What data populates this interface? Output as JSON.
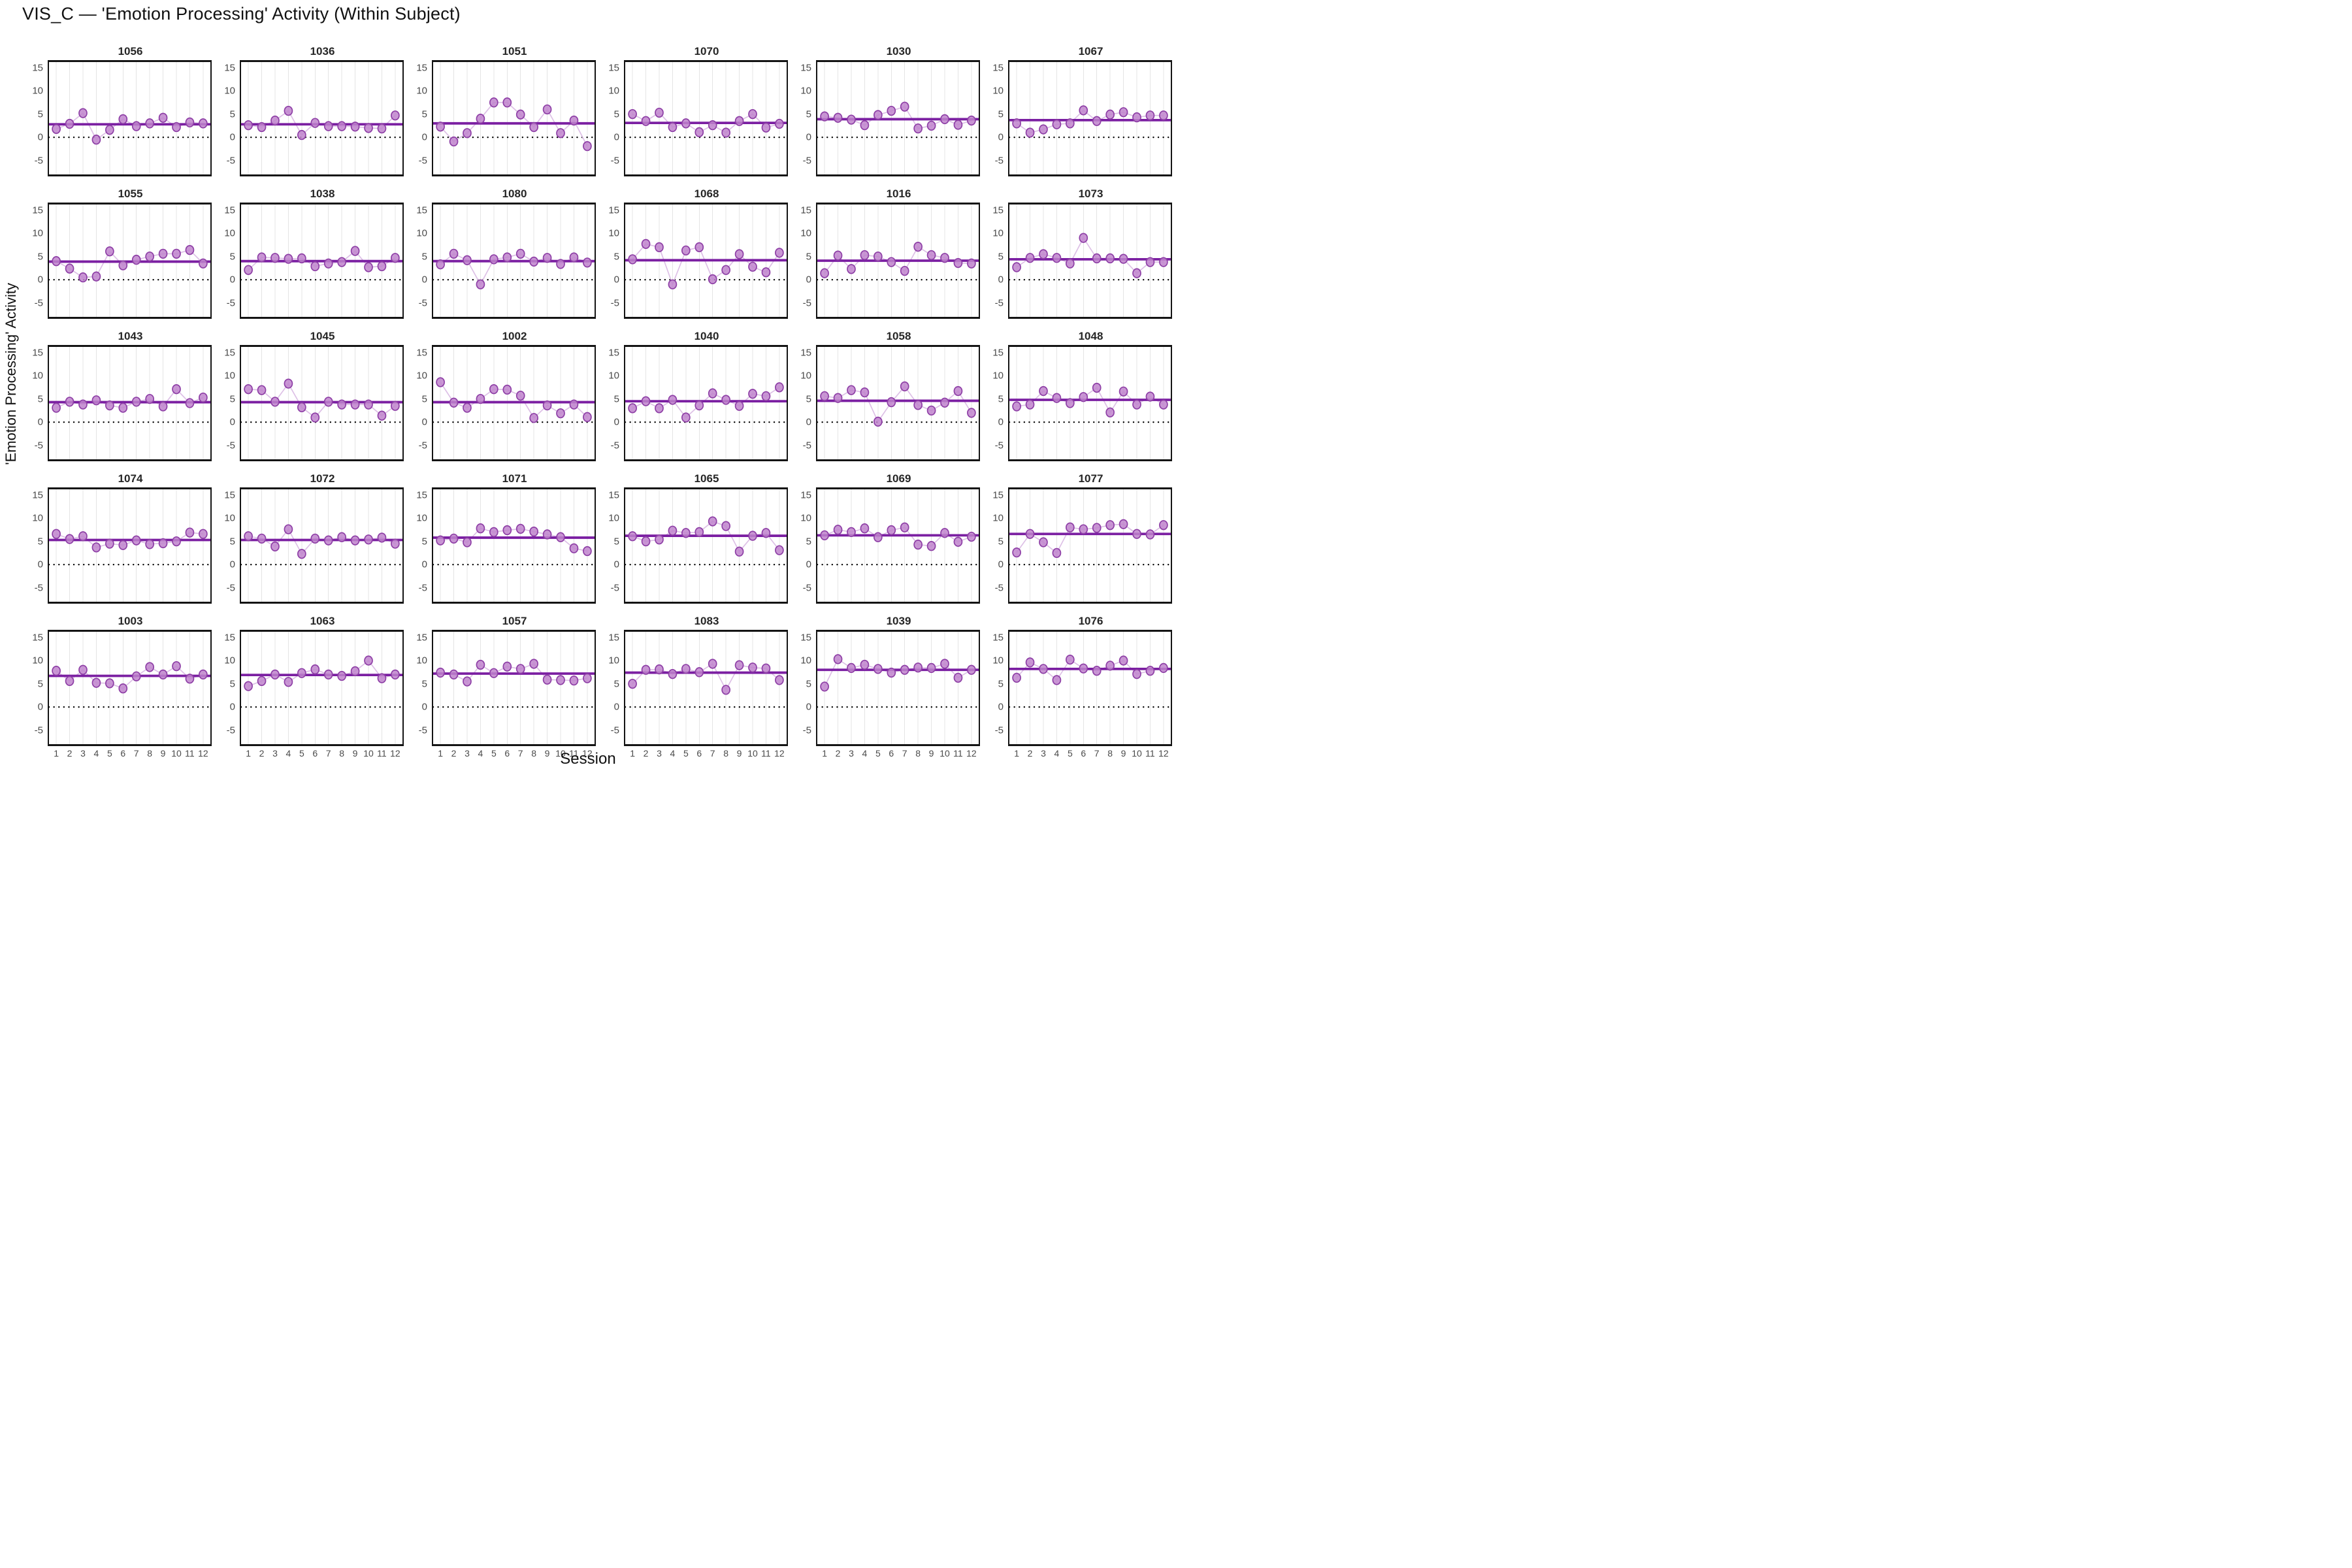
{
  "title": "VIS_C — 'Emotion Processing' Activity (Within Subject)",
  "colors": {
    "dot_fill": "#bf84cc",
    "dot_edge": "#8e3fa6",
    "mean_line": "#7b1fa2",
    "connector_line": "#ddc0e6",
    "grid_line": "#e4e4e4",
    "zero_line": "#000000",
    "tick_text": "#4a4a4a",
    "facet_title_text": "#262626"
  },
  "chart_data": {
    "type": "scatter",
    "title": "VIS_C — 'Emotion Processing' Activity (Within Subject)",
    "xlabel": "Session",
    "ylabel": "'Emotion Processing' Activity",
    "x": [
      1,
      2,
      3,
      4,
      5,
      6,
      7,
      8,
      9,
      10,
      11,
      12
    ],
    "xticks": [
      "1",
      "2",
      "3",
      "4",
      "5",
      "6",
      "7",
      "8",
      "9",
      "10",
      "11",
      "12"
    ],
    "yticks": [
      15,
      10,
      5,
      0,
      -5
    ],
    "ylim": [
      -8,
      16.2
    ],
    "grid": "vertical-only",
    "zero_reference_line": 0,
    "layout": "5 rows x 6 cols facet grid, one facet per subject",
    "facets_per_row": 6,
    "subjects": [
      {
        "id": "1056",
        "mean": 2.8,
        "values": [
          1.8,
          2.9,
          5.2,
          -0.5,
          1.6,
          3.9,
          2.4,
          3.0,
          4.2,
          2.2,
          3.2,
          3.0
        ]
      },
      {
        "id": "1036",
        "mean": 2.8,
        "values": [
          2.6,
          2.2,
          3.6,
          5.7,
          0.5,
          3.1,
          2.4,
          2.4,
          2.3,
          2.0,
          1.9,
          4.7
        ]
      },
      {
        "id": "1051",
        "mean": 3.0,
        "values": [
          2.3,
          -0.9,
          0.9,
          4.0,
          7.5,
          7.5,
          4.9,
          2.2,
          6.0,
          0.9,
          3.6,
          -1.9
        ]
      },
      {
        "id": "1070",
        "mean": 3.1,
        "values": [
          5.0,
          3.5,
          5.3,
          2.2,
          3.0,
          1.1,
          2.6,
          1.0,
          3.5,
          5.0,
          2.1,
          2.9
        ]
      },
      {
        "id": "1030",
        "mean": 3.9,
        "values": [
          4.5,
          4.2,
          3.8,
          2.6,
          4.8,
          5.7,
          6.6,
          1.9,
          2.5,
          3.9,
          2.7,
          3.6
        ]
      },
      {
        "id": "1067",
        "mean": 3.7,
        "values": [
          3.0,
          1.0,
          1.7,
          2.8,
          3.0,
          5.8,
          3.5,
          4.9,
          5.4,
          4.3,
          4.7,
          4.7
        ]
      },
      {
        "id": "1055",
        "mean": 3.9,
        "values": [
          4.0,
          2.4,
          0.5,
          0.7,
          6.1,
          3.1,
          4.3,
          5.0,
          5.6,
          5.6,
          6.4,
          3.5
        ]
      },
      {
        "id": "1038",
        "mean": 4.0,
        "values": [
          2.1,
          4.8,
          4.7,
          4.5,
          4.6,
          2.9,
          3.5,
          3.8,
          6.2,
          2.7,
          2.9,
          4.7
        ]
      },
      {
        "id": "1080",
        "mean": 4.0,
        "values": [
          3.3,
          5.6,
          4.2,
          -1.0,
          4.4,
          4.8,
          5.6,
          3.9,
          4.7,
          3.4,
          4.8,
          3.7
        ]
      },
      {
        "id": "1068",
        "mean": 4.2,
        "values": [
          4.4,
          7.7,
          7.0,
          -1.0,
          6.3,
          7.0,
          0.1,
          2.1,
          5.5,
          2.8,
          1.6,
          5.8
        ]
      },
      {
        "id": "1016",
        "mean": 4.1,
        "values": [
          1.4,
          5.2,
          2.3,
          5.3,
          5.0,
          3.8,
          1.9,
          7.1,
          5.3,
          4.7,
          3.6,
          3.5
        ]
      },
      {
        "id": "1073",
        "mean": 4.4,
        "values": [
          2.7,
          4.7,
          5.5,
          4.7,
          3.5,
          9.0,
          4.6,
          4.6,
          4.5,
          1.4,
          3.8,
          3.8
        ]
      },
      {
        "id": "1043",
        "mean": 4.3,
        "values": [
          3.1,
          4.4,
          3.8,
          4.7,
          3.6,
          3.1,
          4.4,
          5.0,
          3.4,
          7.1,
          4.1,
          5.3
        ]
      },
      {
        "id": "1045",
        "mean": 4.3,
        "values": [
          7.1,
          6.9,
          4.4,
          8.3,
          3.2,
          1.0,
          4.4,
          3.8,
          3.8,
          3.8,
          1.4,
          3.5
        ]
      },
      {
        "id": "1002",
        "mean": 4.3,
        "values": [
          8.6,
          4.2,
          3.1,
          5.0,
          7.1,
          7.0,
          5.7,
          0.9,
          3.6,
          1.9,
          3.8,
          1.1
        ]
      },
      {
        "id": "1040",
        "mean": 4.5,
        "values": [
          3.0,
          4.5,
          3.0,
          4.8,
          1.0,
          3.6,
          6.2,
          4.8,
          3.5,
          6.1,
          5.6,
          7.5
        ]
      },
      {
        "id": "1058",
        "mean": 4.6,
        "values": [
          5.6,
          5.2,
          6.9,
          6.4,
          0.1,
          4.3,
          7.7,
          3.7,
          2.5,
          4.2,
          6.7,
          2.0
        ]
      },
      {
        "id": "1048",
        "mean": 4.8,
        "values": [
          3.4,
          3.8,
          6.7,
          5.2,
          4.1,
          5.4,
          7.4,
          2.1,
          6.6,
          3.8,
          5.5,
          3.8
        ]
      },
      {
        "id": "1074",
        "mean": 5.3,
        "values": [
          6.6,
          5.5,
          6.1,
          3.7,
          4.5,
          4.2,
          5.2,
          4.4,
          4.6,
          5.0,
          6.9,
          6.6
        ]
      },
      {
        "id": "1072",
        "mean": 5.3,
        "values": [
          6.1,
          5.6,
          3.9,
          7.6,
          2.3,
          5.6,
          5.2,
          5.9,
          5.2,
          5.4,
          5.8,
          4.5
        ]
      },
      {
        "id": "1071",
        "mean": 5.8,
        "values": [
          5.2,
          5.6,
          4.8,
          7.8,
          7.0,
          7.4,
          7.7,
          7.1,
          6.5,
          5.9,
          3.5,
          2.9
        ]
      },
      {
        "id": "1065",
        "mean": 6.2,
        "values": [
          6.1,
          5.0,
          5.4,
          7.3,
          6.8,
          7.0,
          9.3,
          8.3,
          2.8,
          6.2,
          6.8,
          3.1
        ]
      },
      {
        "id": "1069",
        "mean": 6.3,
        "values": [
          6.3,
          7.5,
          7.0,
          7.8,
          5.9,
          7.4,
          8.0,
          4.3,
          4.0,
          6.8,
          4.9,
          6.0
        ]
      },
      {
        "id": "1077",
        "mean": 6.6,
        "values": [
          2.6,
          6.6,
          4.8,
          2.5,
          8.0,
          7.6,
          7.9,
          8.5,
          8.7,
          6.6,
          6.5,
          8.5
        ]
      },
      {
        "id": "1003",
        "mean": 6.7,
        "values": [
          7.8,
          5.6,
          8.0,
          5.2,
          5.1,
          4.0,
          6.6,
          8.6,
          7.0,
          8.8,
          6.1,
          7.0
        ]
      },
      {
        "id": "1063",
        "mean": 6.9,
        "values": [
          4.5,
          5.6,
          7.0,
          5.4,
          7.3,
          8.1,
          7.0,
          6.7,
          7.7,
          10.0,
          6.2,
          7.0
        ]
      },
      {
        "id": "1057",
        "mean": 7.2,
        "values": [
          7.4,
          7.0,
          5.5,
          9.1,
          7.3,
          8.7,
          8.2,
          9.3,
          5.9,
          5.8,
          5.7,
          6.2
        ]
      },
      {
        "id": "1083",
        "mean": 7.4,
        "values": [
          5.0,
          8.0,
          8.1,
          7.1,
          8.2,
          7.5,
          9.3,
          3.7,
          9.0,
          8.5,
          8.3,
          5.8
        ]
      },
      {
        "id": "1039",
        "mean": 8.0,
        "values": [
          4.4,
          10.3,
          8.4,
          9.1,
          8.2,
          7.4,
          8.0,
          8.5,
          8.4,
          9.3,
          6.3,
          8.0
        ]
      },
      {
        "id": "1076",
        "mean": 8.2,
        "values": [
          6.3,
          9.6,
          8.2,
          5.8,
          10.2,
          8.3,
          7.8,
          8.9,
          10.0,
          7.1,
          7.8,
          8.4
        ]
      }
    ]
  }
}
